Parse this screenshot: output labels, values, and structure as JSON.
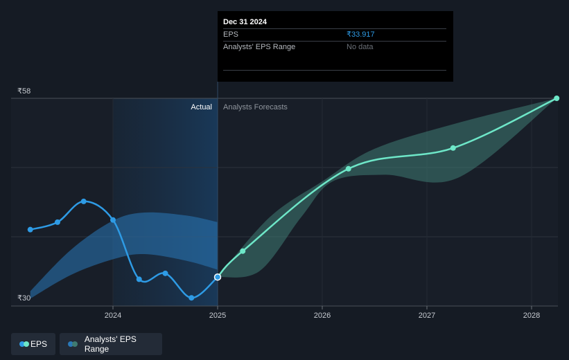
{
  "tooltip": {
    "date": "Dec 31 2024",
    "eps_label": "EPS",
    "eps_value": "₹33.917",
    "range_label": "Analysts' EPS Range",
    "range_value": "No data"
  },
  "labels": {
    "actual": "Actual",
    "forecast": "Analysts Forecasts"
  },
  "legend": {
    "eps": "EPS",
    "range": "Analysts' EPS Range"
  },
  "colors": {
    "background": "#151b24",
    "eps_actual": "#2e9be5",
    "eps_forecast": "#6ee7c8",
    "range_actual": "#2a78b8",
    "range_forecast": "#3f7b72"
  },
  "chart_data": {
    "type": "line",
    "xlabel": "",
    "ylabel": "",
    "y_tick_labels": [
      "₹58",
      "₹30"
    ],
    "x_ticks": [
      {
        "x": 2024,
        "label": "2024"
      },
      {
        "x": 2025,
        "label": "2025"
      },
      {
        "x": 2026,
        "label": "2026"
      },
      {
        "x": 2027,
        "label": "2027"
      },
      {
        "x": 2028,
        "label": "2028"
      }
    ],
    "xlim": [
      2022.78,
      2028.24
    ],
    "ylim": [
      30,
      58
    ],
    "divider_x": 2025.0,
    "series": [
      {
        "name": "EPS",
        "kind": "actual",
        "points": [
          [
            2023.21,
            40.3
          ],
          [
            2023.47,
            41.3
          ],
          [
            2023.72,
            44.1
          ],
          [
            2024.0,
            41.6
          ],
          [
            2024.25,
            33.6
          ],
          [
            2024.5,
            34.4
          ],
          [
            2024.75,
            31.1
          ],
          [
            2025.0,
            33.9
          ]
        ]
      },
      {
        "name": "EPS",
        "kind": "forecast",
        "points": [
          [
            2025.0,
            33.9
          ],
          [
            2025.24,
            37.4
          ],
          [
            2026.25,
            48.5
          ],
          [
            2027.25,
            51.3
          ],
          [
            2028.24,
            58.0
          ]
        ]
      }
    ],
    "range_bands": [
      {
        "name": "Analysts' EPS Range",
        "kind": "actual",
        "upper": [
          [
            2023.21,
            32.0
          ],
          [
            2023.6,
            37.6
          ],
          [
            2024.0,
            41.5
          ],
          [
            2024.3,
            42.6
          ],
          [
            2024.7,
            42.2
          ],
          [
            2025.0,
            41.3
          ]
        ],
        "lower": [
          [
            2023.21,
            31.0
          ],
          [
            2023.6,
            34.2
          ],
          [
            2024.0,
            36.3
          ],
          [
            2024.3,
            37.0
          ],
          [
            2024.7,
            36.1
          ],
          [
            2025.0,
            34.9
          ]
        ]
      },
      {
        "name": "Analysts' EPS Range",
        "kind": "forecast",
        "upper": [
          [
            2025.0,
            33.9
          ],
          [
            2025.5,
            42.0
          ],
          [
            2026.0,
            46.8
          ],
          [
            2026.5,
            51.2
          ],
          [
            2027.3,
            54.7
          ],
          [
            2028.24,
            58.0
          ]
        ],
        "lower": [
          [
            2025.0,
            33.9
          ],
          [
            2025.4,
            34.7
          ],
          [
            2025.8,
            42.0
          ],
          [
            2026.1,
            46.8
          ],
          [
            2026.6,
            47.7
          ],
          [
            2027.3,
            47.3
          ],
          [
            2028.24,
            58.0
          ]
        ]
      }
    ],
    "grid": true,
    "legend_position": "bottom-left"
  }
}
